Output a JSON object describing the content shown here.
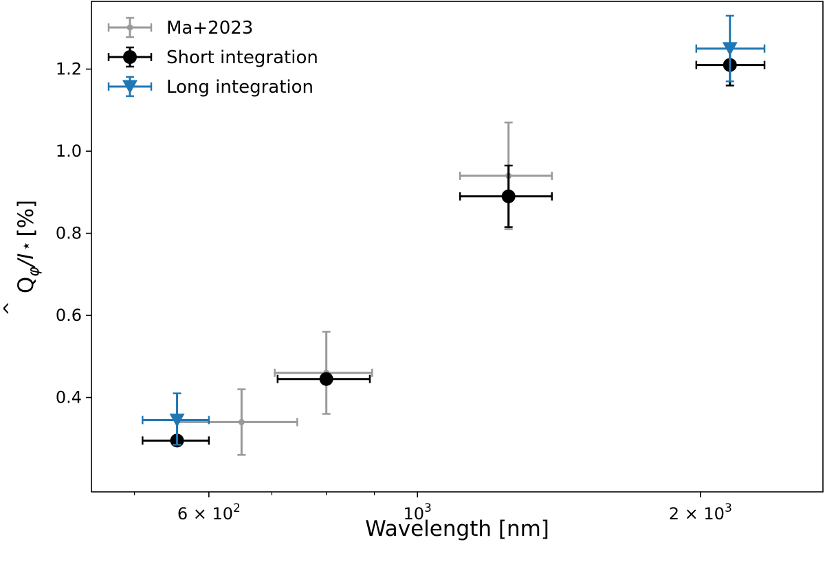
{
  "chart_data": {
    "type": "scatter",
    "title": "",
    "xlabel": "Wavelength [nm]",
    "ylabel": "Q̂φ/I⋆ [%]",
    "ylabel_parts": {
      "q": "Q",
      "hat": "^",
      "sub": "φ",
      "slash": "/I",
      "star": "⋆",
      "unit": "[%]"
    },
    "xscale": "log",
    "xlim": [
      450,
      2700
    ],
    "ylim": [
      0.17,
      1.365
    ],
    "grid": false,
    "legend_position": "top-left",
    "x_major_ticks": [
      {
        "value": 600,
        "base": "6 × 10",
        "exp": "2"
      },
      {
        "value": 1000,
        "base": "10",
        "exp": "3"
      },
      {
        "value": 2000,
        "base": "2 × 10",
        "exp": "3"
      }
    ],
    "x_minor_ticks": [
      500,
      700,
      800,
      900
    ],
    "y_ticks": [
      {
        "value": 0.4,
        "label": "0.4"
      },
      {
        "value": 0.6,
        "label": "0.6"
      },
      {
        "value": 0.8,
        "label": "0.8"
      },
      {
        "value": 1.0,
        "label": "1.0"
      },
      {
        "value": 1.2,
        "label": "1.2"
      }
    ],
    "series": [
      {
        "name": "Ma+2023",
        "color": "#999999",
        "marker": "circle-small",
        "points": [
          {
            "x": 650,
            "y": 0.34,
            "xmin": 555,
            "xmax": 745,
            "ymin": 0.26,
            "ymax": 0.42
          },
          {
            "x": 800,
            "y": 0.46,
            "xmin": 705,
            "xmax": 895,
            "ymin": 0.36,
            "ymax": 0.56
          },
          {
            "x": 1250,
            "y": 0.94,
            "xmin": 1110,
            "xmax": 1390,
            "ymin": 0.81,
            "ymax": 1.07
          }
        ]
      },
      {
        "name": "Short integration",
        "color": "#000000",
        "marker": "circle-large",
        "points": [
          {
            "x": 555,
            "y": 0.295,
            "xmin": 510,
            "xmax": 600,
            "ymin": 0.285,
            "ymax": 0.305
          },
          {
            "x": 800,
            "y": 0.445,
            "xmin": 710,
            "xmax": 890,
            "ymin": 0.435,
            "ymax": 0.455
          },
          {
            "x": 1250,
            "y": 0.89,
            "xmin": 1110,
            "xmax": 1390,
            "ymin": 0.815,
            "ymax": 0.965
          },
          {
            "x": 2150,
            "y": 1.21,
            "xmin": 1980,
            "xmax": 2340,
            "ymin": 1.16,
            "ymax": 1.26
          }
        ]
      },
      {
        "name": "Long integration",
        "color": "#1f77b4",
        "marker": "triangle-down",
        "points": [
          {
            "x": 555,
            "y": 0.345,
            "xmin": 510,
            "xmax": 600,
            "ymin": 0.285,
            "ymax": 0.41
          },
          {
            "x": 2150,
            "y": 1.25,
            "xmin": 1980,
            "xmax": 2340,
            "ymin": 1.17,
            "ymax": 1.33
          }
        ]
      }
    ]
  }
}
